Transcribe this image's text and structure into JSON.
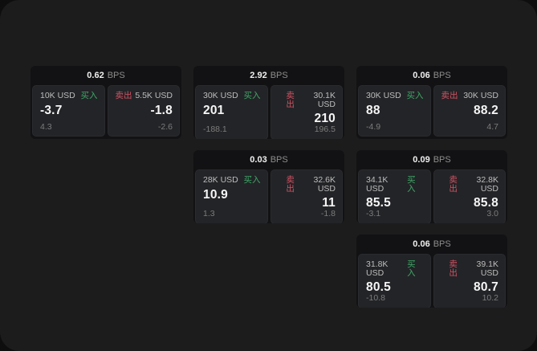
{
  "labels": {
    "bps_unit": "BPS",
    "buy": "买入",
    "sell": "卖出"
  },
  "colors": {
    "buy_green": "#3fa768",
    "sell_red": "#d05263",
    "panel_bg": "#1c1c1d",
    "card_bg": "#121214",
    "tile_bg": "#232427"
  },
  "cards": [
    {
      "bps": "0.62",
      "buy": {
        "amount": "10K USD",
        "price": "-3.7",
        "change": "4.3"
      },
      "sell": {
        "amount": "5.5K USD",
        "price": "-1.8",
        "change": "-2.6"
      }
    },
    {
      "bps": "2.92",
      "buy": {
        "amount": "30K USD",
        "price": "201",
        "change": "-188.1"
      },
      "sell": {
        "amount": "30.1K USD",
        "price": "210",
        "change": "196.5"
      }
    },
    {
      "bps": "0.06",
      "buy": {
        "amount": "30K USD",
        "price": "88",
        "change": "-4.9"
      },
      "sell": {
        "amount": "30K USD",
        "price": "88.2",
        "change": "4.7"
      }
    },
    {
      "bps": "0.03",
      "buy": {
        "amount": "28K USD",
        "price": "10.9",
        "change": "1.3"
      },
      "sell": {
        "amount": "32.6K USD",
        "price": "11",
        "change": "-1.8"
      }
    },
    {
      "bps": "0.09",
      "buy": {
        "amount": "34.1K USD",
        "price": "85.5",
        "change": "-3.1"
      },
      "sell": {
        "amount": "32.8K USD",
        "price": "85.8",
        "change": "3.0"
      }
    },
    {
      "bps": "0.06",
      "buy": {
        "amount": "31.8K USD",
        "price": "80.5",
        "change": "-10.8"
      },
      "sell": {
        "amount": "39.1K USD",
        "price": "80.7",
        "change": "10.2"
      }
    }
  ]
}
